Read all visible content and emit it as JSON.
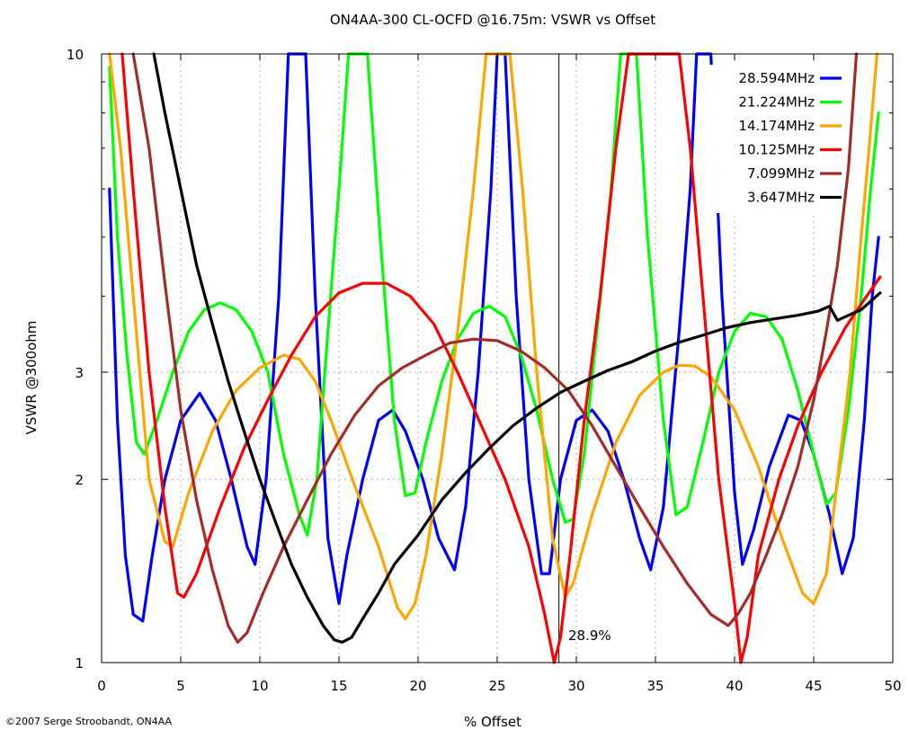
{
  "chart_data": {
    "type": "line",
    "title": "ON4AA-300 CL-OCFD @16.75m: VSWR vs Offset",
    "xlabel": "% Offset",
    "ylabel": "VSWR @300ohm",
    "xlim": [
      0,
      50
    ],
    "ylim": [
      1,
      10
    ],
    "y_scale": "log",
    "grid": true,
    "legend_position": "top-right",
    "x_ticks": [
      "0",
      "5",
      "10",
      "15",
      "20",
      "25",
      "30",
      "35",
      "40",
      "45",
      "50"
    ],
    "y_ticks": [
      "1",
      "2",
      "3",
      "10"
    ],
    "annotation": "28.9%",
    "annotation_x": 28.9,
    "copyright": "©2007 Serge Stroobandt, ON4AA",
    "series": [
      {
        "name": "28.594MHz",
        "color": "#0000ff",
        "points": [
          [
            0.5,
            6.0
          ],
          [
            1.0,
            2.5
          ],
          [
            1.5,
            1.5
          ],
          [
            2.0,
            1.2
          ],
          [
            2.6,
            1.17
          ],
          [
            3.2,
            1.5
          ],
          [
            4.0,
            2.0
          ],
          [
            5.0,
            2.5
          ],
          [
            6.2,
            2.77
          ],
          [
            7.2,
            2.5
          ],
          [
            8.2,
            2.0
          ],
          [
            9.2,
            1.55
          ],
          [
            9.7,
            1.45
          ],
          [
            10.4,
            2.0
          ],
          [
            11.2,
            4.0
          ],
          [
            11.8,
            10.0
          ],
          [
            12.9,
            10.0
          ],
          [
            13.5,
            4.0
          ],
          [
            14.3,
            1.6
          ],
          [
            15.0,
            1.25
          ],
          [
            15.5,
            1.5
          ],
          [
            16.5,
            2.0
          ],
          [
            17.5,
            2.5
          ],
          [
            18.4,
            2.6
          ],
          [
            19.2,
            2.4
          ],
          [
            20.3,
            2.0
          ],
          [
            21.3,
            1.6
          ],
          [
            22.3,
            1.42
          ],
          [
            23.0,
            1.8
          ],
          [
            23.8,
            3.0
          ],
          [
            24.6,
            6.0
          ],
          [
            25.0,
            10.0
          ],
          [
            25.5,
            10.0
          ],
          [
            26.2,
            4.0
          ],
          [
            27.0,
            2.0
          ],
          [
            27.8,
            1.4
          ],
          [
            28.3,
            1.4
          ],
          [
            29.0,
            2.0
          ],
          [
            30.0,
            2.5
          ],
          [
            31.0,
            2.6
          ],
          [
            32.0,
            2.4
          ],
          [
            33.0,
            2.0
          ],
          [
            34.0,
            1.6
          ],
          [
            34.7,
            1.42
          ],
          [
            35.5,
            1.8
          ],
          [
            36.5,
            3.5
          ],
          [
            37.2,
            6.0
          ],
          [
            37.6,
            10.0
          ],
          [
            38.5,
            10.0
          ],
          [
            39.2,
            4.0
          ],
          [
            40.0,
            1.9
          ],
          [
            40.5,
            1.45
          ],
          [
            41.2,
            1.65
          ],
          [
            42.2,
            2.1
          ],
          [
            43.4,
            2.55
          ],
          [
            44.2,
            2.5
          ],
          [
            45.0,
            2.2
          ],
          [
            46.0,
            1.75
          ],
          [
            46.8,
            1.4
          ],
          [
            47.5,
            1.6
          ],
          [
            48.2,
            2.5
          ],
          [
            48.7,
            4.0
          ],
          [
            49.1,
            5.0
          ]
        ]
      },
      {
        "name": "21.224MHz",
        "color": "#00ff00",
        "points": [
          [
            0.5,
            9.5
          ],
          [
            1.0,
            5.0
          ],
          [
            1.6,
            3.2
          ],
          [
            2.2,
            2.3
          ],
          [
            2.7,
            2.2
          ],
          [
            3.5,
            2.5
          ],
          [
            4.5,
            3.0
          ],
          [
            5.5,
            3.5
          ],
          [
            6.5,
            3.8
          ],
          [
            7.5,
            3.9
          ],
          [
            8.5,
            3.8
          ],
          [
            9.5,
            3.5
          ],
          [
            10.5,
            3.0
          ],
          [
            11.5,
            2.2
          ],
          [
            12.5,
            1.75
          ],
          [
            13.0,
            1.62
          ],
          [
            13.6,
            2.0
          ],
          [
            14.3,
            3.5
          ],
          [
            15.0,
            6.0
          ],
          [
            15.6,
            10.0
          ],
          [
            16.8,
            10.0
          ],
          [
            17.6,
            5.0
          ],
          [
            18.5,
            2.5
          ],
          [
            19.2,
            1.88
          ],
          [
            19.8,
            1.9
          ],
          [
            20.5,
            2.3
          ],
          [
            21.5,
            2.9
          ],
          [
            22.5,
            3.4
          ],
          [
            23.5,
            3.75
          ],
          [
            24.5,
            3.85
          ],
          [
            25.5,
            3.7
          ],
          [
            26.5,
            3.2
          ],
          [
            27.5,
            2.6
          ],
          [
            28.5,
            2.0
          ],
          [
            29.3,
            1.7
          ],
          [
            29.8,
            1.72
          ],
          [
            30.5,
            2.2
          ],
          [
            31.3,
            3.5
          ],
          [
            32.2,
            6.0
          ],
          [
            32.8,
            10.0
          ],
          [
            33.8,
            10.0
          ],
          [
            34.5,
            5.0
          ],
          [
            35.5,
            2.5
          ],
          [
            36.3,
            1.75
          ],
          [
            37.0,
            1.8
          ],
          [
            38.0,
            2.3
          ],
          [
            39.0,
            3.0
          ],
          [
            40.0,
            3.5
          ],
          [
            41.0,
            3.75
          ],
          [
            42.0,
            3.7
          ],
          [
            43.0,
            3.4
          ],
          [
            44.0,
            2.8
          ],
          [
            45.0,
            2.2
          ],
          [
            45.8,
            1.82
          ],
          [
            46.4,
            1.9
          ],
          [
            47.2,
            2.6
          ],
          [
            48.0,
            4.0
          ],
          [
            48.6,
            6.0
          ],
          [
            49.1,
            8.0
          ]
        ]
      },
      {
        "name": "14.174MHz",
        "color": "#ffa500",
        "points": [
          [
            0.5,
            10.0
          ],
          [
            1.2,
            7.0
          ],
          [
            2.0,
            4.0
          ],
          [
            3.0,
            2.0
          ],
          [
            4.0,
            1.58
          ],
          [
            4.5,
            1.55
          ],
          [
            5.5,
            1.9
          ],
          [
            7.0,
            2.4
          ],
          [
            8.5,
            2.8
          ],
          [
            10.0,
            3.05
          ],
          [
            11.5,
            3.2
          ],
          [
            12.5,
            3.15
          ],
          [
            13.5,
            2.9
          ],
          [
            14.5,
            2.5
          ],
          [
            16.0,
            1.95
          ],
          [
            17.5,
            1.55
          ],
          [
            18.7,
            1.23
          ],
          [
            19.2,
            1.18
          ],
          [
            19.8,
            1.25
          ],
          [
            20.5,
            1.5
          ],
          [
            21.5,
            2.2
          ],
          [
            22.5,
            3.5
          ],
          [
            23.5,
            6.0
          ],
          [
            24.3,
            10.0
          ],
          [
            25.8,
            10.0
          ],
          [
            26.6,
            6.0
          ],
          [
            27.5,
            3.0
          ],
          [
            28.5,
            1.6
          ],
          [
            29.3,
            1.28
          ],
          [
            29.8,
            1.35
          ],
          [
            31.0,
            1.75
          ],
          [
            32.5,
            2.3
          ],
          [
            34.0,
            2.75
          ],
          [
            35.5,
            3.0
          ],
          [
            36.5,
            3.08
          ],
          [
            37.5,
            3.07
          ],
          [
            38.5,
            2.95
          ],
          [
            40.0,
            2.6
          ],
          [
            41.5,
            2.1
          ],
          [
            43.0,
            1.6
          ],
          [
            44.3,
            1.3
          ],
          [
            45.0,
            1.25
          ],
          [
            45.8,
            1.4
          ],
          [
            46.5,
            2.0
          ],
          [
            47.3,
            3.0
          ],
          [
            48.0,
            5.0
          ],
          [
            48.5,
            7.0
          ],
          [
            49.0,
            10.0
          ]
        ]
      },
      {
        "name": "10.125MHz",
        "color": "#ff0000",
        "points": [
          [
            1.3,
            10.0
          ],
          [
            2.0,
            6.0
          ],
          [
            3.0,
            3.0
          ],
          [
            4.0,
            1.8
          ],
          [
            4.8,
            1.3
          ],
          [
            5.2,
            1.28
          ],
          [
            6.0,
            1.4
          ],
          [
            7.5,
            1.8
          ],
          [
            9.0,
            2.25
          ],
          [
            10.5,
            2.7
          ],
          [
            12.0,
            3.2
          ],
          [
            13.5,
            3.7
          ],
          [
            15.0,
            4.05
          ],
          [
            16.5,
            4.2
          ],
          [
            18.0,
            4.2
          ],
          [
            19.5,
            4.0
          ],
          [
            21.0,
            3.6
          ],
          [
            22.5,
            3.0
          ],
          [
            24.0,
            2.45
          ],
          [
            25.5,
            2.0
          ],
          [
            27.0,
            1.55
          ],
          [
            28.0,
            1.2
          ],
          [
            28.6,
            1.0
          ],
          [
            29.0,
            1.1
          ],
          [
            29.6,
            1.5
          ],
          [
            30.5,
            2.5
          ],
          [
            31.5,
            4.0
          ],
          [
            32.5,
            7.0
          ],
          [
            33.3,
            10.0
          ],
          [
            36.5,
            10.0
          ],
          [
            37.2,
            7.0
          ],
          [
            38.0,
            4.0
          ],
          [
            39.0,
            2.0
          ],
          [
            40.0,
            1.25
          ],
          [
            40.4,
            1.0
          ],
          [
            40.8,
            1.1
          ],
          [
            41.5,
            1.5
          ],
          [
            42.8,
            2.0
          ],
          [
            44.0,
            2.45
          ],
          [
            45.5,
            3.0
          ],
          [
            47.0,
            3.55
          ],
          [
            48.2,
            3.95
          ],
          [
            49.2,
            4.3
          ]
        ]
      },
      {
        "name": "7.099MHz",
        "color": "#a52a2a",
        "points": [
          [
            2.0,
            10.0
          ],
          [
            3.0,
            7.0
          ],
          [
            4.0,
            4.2
          ],
          [
            5.0,
            2.6
          ],
          [
            6.0,
            1.85
          ],
          [
            7.0,
            1.42
          ],
          [
            8.0,
            1.15
          ],
          [
            8.6,
            1.08
          ],
          [
            9.2,
            1.12
          ],
          [
            10.2,
            1.3
          ],
          [
            11.5,
            1.55
          ],
          [
            13.0,
            1.85
          ],
          [
            14.5,
            2.2
          ],
          [
            16.0,
            2.55
          ],
          [
            17.5,
            2.85
          ],
          [
            19.0,
            3.05
          ],
          [
            20.5,
            3.2
          ],
          [
            22.0,
            3.35
          ],
          [
            23.5,
            3.4
          ],
          [
            25.0,
            3.38
          ],
          [
            26.5,
            3.25
          ],
          [
            28.0,
            3.05
          ],
          [
            29.5,
            2.8
          ],
          [
            31.0,
            2.45
          ],
          [
            32.5,
            2.1
          ],
          [
            34.0,
            1.8
          ],
          [
            35.5,
            1.55
          ],
          [
            37.0,
            1.35
          ],
          [
            38.5,
            1.2
          ],
          [
            39.6,
            1.15
          ],
          [
            40.2,
            1.2
          ],
          [
            41.0,
            1.3
          ],
          [
            42.0,
            1.5
          ],
          [
            43.0,
            1.75
          ],
          [
            44.0,
            2.1
          ],
          [
            45.0,
            2.7
          ],
          [
            45.8,
            3.5
          ],
          [
            46.5,
            4.5
          ],
          [
            47.2,
            6.5
          ],
          [
            47.7,
            10.0
          ]
        ]
      },
      {
        "name": "3.647MHz",
        "color": "#000000",
        "points": [
          [
            3.3,
            10.0
          ],
          [
            4.0,
            8.0
          ],
          [
            5.0,
            6.0
          ],
          [
            6.0,
            4.5
          ],
          [
            7.0,
            3.6
          ],
          [
            8.0,
            2.9
          ],
          [
            9.0,
            2.4
          ],
          [
            10.0,
            2.0
          ],
          [
            11.0,
            1.7
          ],
          [
            12.0,
            1.45
          ],
          [
            13.0,
            1.28
          ],
          [
            14.0,
            1.15
          ],
          [
            14.7,
            1.09
          ],
          [
            15.2,
            1.08
          ],
          [
            15.8,
            1.1
          ],
          [
            16.5,
            1.18
          ],
          [
            17.5,
            1.3
          ],
          [
            18.5,
            1.45
          ],
          [
            20.0,
            1.62
          ],
          [
            21.5,
            1.85
          ],
          [
            23.0,
            2.05
          ],
          [
            24.5,
            2.25
          ],
          [
            26.0,
            2.45
          ],
          [
            27.5,
            2.62
          ],
          [
            29.0,
            2.78
          ],
          [
            30.5,
            2.9
          ],
          [
            32.0,
            3.02
          ],
          [
            33.5,
            3.12
          ],
          [
            35.0,
            3.25
          ],
          [
            36.5,
            3.36
          ],
          [
            38.0,
            3.45
          ],
          [
            39.5,
            3.55
          ],
          [
            41.0,
            3.62
          ],
          [
            42.5,
            3.67
          ],
          [
            44.0,
            3.72
          ],
          [
            45.3,
            3.78
          ],
          [
            46.0,
            3.85
          ],
          [
            46.5,
            3.65
          ],
          [
            47.0,
            3.7
          ],
          [
            48.0,
            3.8
          ],
          [
            49.2,
            4.05
          ]
        ]
      }
    ]
  }
}
